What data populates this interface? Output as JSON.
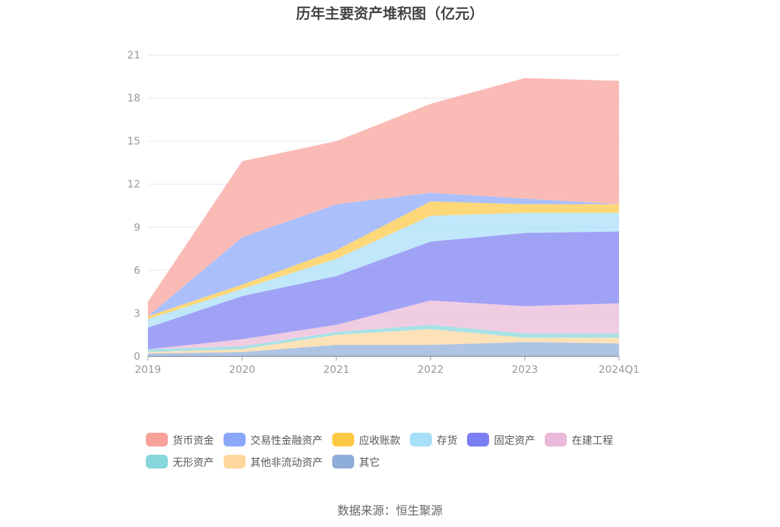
{
  "chart_data": {
    "type": "area",
    "stacked": true,
    "title": "历年主要资产堆积图（亿元）",
    "categories": [
      "2019",
      "2020",
      "2021",
      "2022",
      "2023",
      "2024Q1"
    ],
    "ylim": [
      0,
      21
    ],
    "yticks": [
      "0",
      "3",
      "6",
      "9",
      "12",
      "15",
      "18",
      "21"
    ],
    "grid": true,
    "legend_position": "bottom",
    "series": [
      {
        "name": "其它",
        "color": "#8fadd9",
        "values": [
          0.2,
          0.3,
          0.8,
          0.8,
          1.0,
          0.9
        ]
      },
      {
        "name": "其他非流动资产",
        "color": "#fdd79b",
        "values": [
          0.1,
          0.2,
          0.7,
          1.1,
          0.3,
          0.4
        ]
      },
      {
        "name": "无形资产",
        "color": "#86d7dc",
        "values": [
          0.2,
          0.2,
          0.2,
          0.3,
          0.3,
          0.3
        ]
      },
      {
        "name": "在建工程",
        "color": "#eab8d8",
        "values": [
          0.0,
          0.5,
          0.5,
          1.7,
          1.9,
          2.1
        ]
      },
      {
        "name": "固定资产",
        "color": "#7b7ef2",
        "values": [
          1.5,
          3.0,
          3.4,
          4.1,
          5.1,
          5.0
        ]
      },
      {
        "name": "存货",
        "color": "#a8dff8",
        "values": [
          0.6,
          0.5,
          1.2,
          1.8,
          1.4,
          1.3
        ]
      },
      {
        "name": "应收账款",
        "color": "#fdc944",
        "values": [
          0.2,
          0.3,
          0.6,
          1.0,
          0.6,
          0.6
        ]
      },
      {
        "name": "交易性金融资产",
        "color": "#8aa7fa",
        "values": [
          0.0,
          3.3,
          3.2,
          0.6,
          0.4,
          0.0
        ]
      },
      {
        "name": "货币资金",
        "color": "#f8a19b",
        "values": [
          1.0,
          5.3,
          4.4,
          6.2,
          8.4,
          8.6
        ]
      }
    ],
    "legend_order": [
      "货币资金",
      "交易性金融资产",
      "应收账款",
      "存货",
      "固定资产",
      "在建工程",
      "无形资产",
      "其他非流动资产",
      "其它"
    ]
  },
  "source": "数据来源：恒生聚源"
}
